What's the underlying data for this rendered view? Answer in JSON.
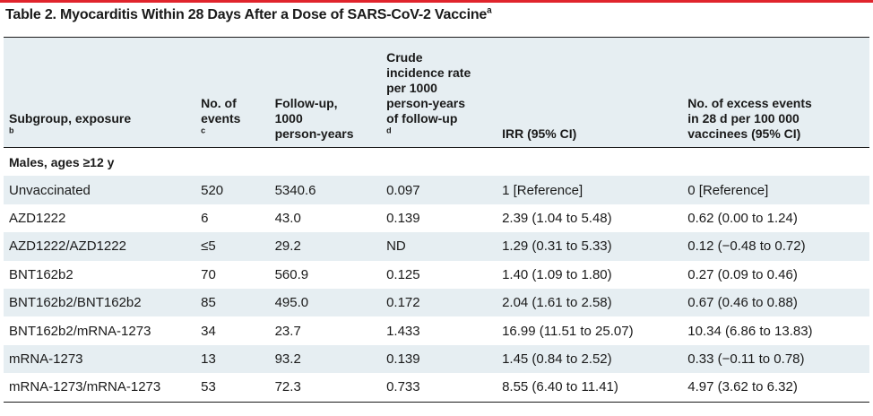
{
  "title": {
    "text": "Table 2. Myocarditis Within 28 Days After a Dose of SARS-CoV-2 Vaccine",
    "sup": "a"
  },
  "headers": [
    {
      "text": "Subgroup, exposure",
      "sup": "b"
    },
    {
      "text": "No. of\nevents",
      "sup": "c"
    },
    {
      "text": "Follow-up,\n1000\nperson-years",
      "sup": ""
    },
    {
      "text": "Crude\nincidence rate\nper 1000\nperson-years\nof follow-up",
      "sup": "d"
    },
    {
      "text": "IRR (95% CI)",
      "sup": ""
    },
    {
      "text": "No. of excess events\nin 28 d per 100 000\nvaccinees (95% CI)",
      "sup": ""
    }
  ],
  "subgroup_label": "Males, ages ≥12 y",
  "rows": [
    [
      "Unvaccinated",
      "520",
      "5340.6",
      "0.097",
      "1 [Reference]",
      "0 [Reference]"
    ],
    [
      "AZD1222",
      "6",
      "43.0",
      "0.139",
      "2.39 (1.04 to 5.48)",
      "0.62 (0.00 to 1.24)"
    ],
    [
      "AZD1222/AZD1222",
      "≤5",
      "29.2",
      "ND",
      "1.29 (0.31 to 5.33)",
      "0.12 (−0.48 to 0.72)"
    ],
    [
      "BNT162b2",
      "70",
      "560.9",
      "0.125",
      "1.40 (1.09 to 1.80)",
      "0.27 (0.09 to 0.46)"
    ],
    [
      "BNT162b2/BNT162b2",
      "85",
      "495.0",
      "0.172",
      "2.04 (1.61 to 2.58)",
      "0.67 (0.46 to 0.88)"
    ],
    [
      "BNT162b2/mRNA-1273",
      "34",
      "23.7",
      "1.433",
      "16.99 (11.51 to 25.07)",
      "10.34 (6.86 to 13.83)"
    ],
    [
      "mRNA-1273",
      "13",
      "93.2",
      "0.139",
      "1.45 (0.84 to 2.52)",
      "0.33 (−0.11 to 0.78)"
    ],
    [
      "mRNA-1273/mRNA-1273",
      "53",
      "72.3",
      "0.733",
      "8.55 (6.40 to 11.41)",
      "4.97 (3.62 to 6.32)"
    ]
  ]
}
